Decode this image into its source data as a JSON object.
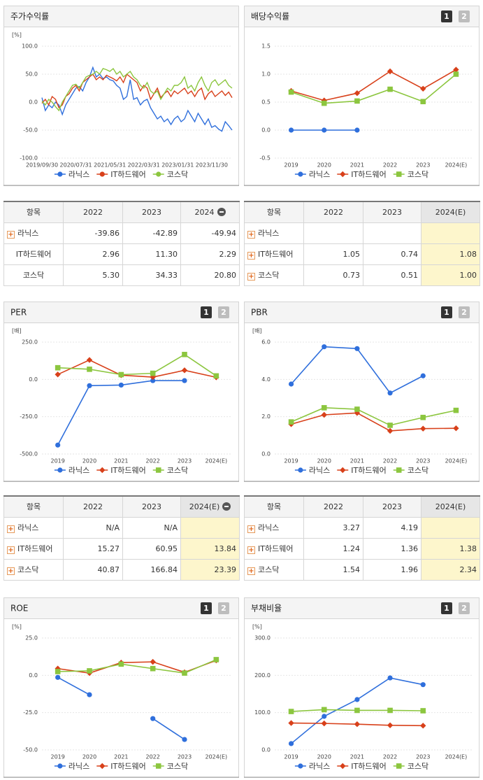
{
  "chart_data": [
    {
      "type": "line",
      "title": "주가수익률",
      "y_label": "[%]",
      "categories": [
        "2019/09/30",
        null,
        null,
        null,
        null,
        null,
        null,
        null,
        null,
        null,
        "2020/07/31",
        null,
        null,
        null,
        null,
        null,
        null,
        null,
        null,
        null,
        "2021/05/31",
        null,
        null,
        null,
        null,
        null,
        null,
        null,
        null,
        null,
        "2022/03/31",
        null,
        null,
        null,
        null,
        null,
        null,
        null,
        null,
        null,
        "2023/01/31",
        null,
        null,
        null,
        null,
        null,
        null,
        null,
        null,
        null,
        "2023/11/30",
        null,
        null,
        null,
        null,
        null,
        null
      ],
      "series": [
        {
          "name": "라닉스",
          "color": "#2f6fdc",
          "values": [
            8,
            -15,
            -5,
            -10,
            0,
            -5,
            -22,
            -5,
            5,
            15,
            25,
            28,
            20,
            35,
            45,
            62,
            45,
            50,
            42,
            45,
            40,
            38,
            30,
            25,
            5,
            10,
            40,
            5,
            8,
            -5,
            2,
            5,
            -10,
            -20,
            -30,
            -25,
            -35,
            -30,
            -40,
            -30,
            -25,
            -35,
            -30,
            -15,
            -25,
            -35,
            -20,
            -30,
            -40,
            -30,
            -45,
            -42,
            -48,
            -52,
            -35,
            -42,
            -50
          ]
        },
        {
          "name": "IT하드웨어",
          "color": "#d8401a",
          "values": [
            -2,
            5,
            -5,
            10,
            5,
            -10,
            -5,
            10,
            15,
            25,
            30,
            20,
            35,
            40,
            45,
            50,
            40,
            45,
            40,
            48,
            45,
            42,
            38,
            45,
            35,
            50,
            45,
            40,
            35,
            20,
            30,
            25,
            5,
            15,
            25,
            8,
            15,
            20,
            10,
            20,
            15,
            20,
            25,
            15,
            20,
            10,
            20,
            25,
            5,
            15,
            20,
            10,
            15,
            20,
            12,
            18,
            8
          ]
        },
        {
          "name": "코스닥",
          "color": "#8cc63f",
          "values": [
            2,
            -5,
            5,
            0,
            -8,
            -15,
            0,
            10,
            20,
            30,
            32,
            25,
            35,
            45,
            48,
            50,
            55,
            50,
            60,
            58,
            55,
            60,
            50,
            55,
            45,
            50,
            55,
            45,
            40,
            30,
            25,
            35,
            20,
            15,
            20,
            5,
            15,
            25,
            20,
            30,
            30,
            35,
            45,
            25,
            30,
            20,
            35,
            45,
            30,
            20,
            35,
            40,
            30,
            35,
            40,
            30,
            25
          ]
        }
      ],
      "ylim": [
        -100,
        100
      ],
      "yticks": [
        {
          "value": 100,
          "label": "100.0"
        },
        {
          "value": 50,
          "label": "50.0"
        },
        {
          "value": 0,
          "label": "0.0"
        },
        {
          "value": -50,
          "label": "-50.0"
        },
        {
          "value": -100,
          "label": "-100.0"
        }
      ]
    },
    {
      "type": "line",
      "title": "배당수익률",
      "tabs": [
        "1",
        "2"
      ],
      "categories": [
        "2019",
        "2020",
        "2021",
        "2022",
        "2023",
        "2024(E)"
      ],
      "series": [
        {
          "name": "라닉스",
          "color": "#2f6fdc",
          "marker": "circle",
          "values": [
            0,
            0,
            0,
            null,
            null,
            null
          ]
        },
        {
          "name": "IT하드웨어",
          "color": "#d8401a",
          "marker": "diamond",
          "values": [
            0.7,
            0.53,
            0.66,
            1.05,
            0.74,
            1.08
          ]
        },
        {
          "name": "코스닥",
          "color": "#8cc63f",
          "marker": "square",
          "values": [
            0.68,
            0.48,
            0.52,
            0.73,
            0.51,
            1.0
          ]
        }
      ],
      "ylim": [
        -0.5,
        1.5
      ],
      "yticks": [
        {
          "value": 1.5,
          "label": "1.5"
        },
        {
          "value": 1,
          "label": "1.0"
        },
        {
          "value": 0.5,
          "label": "0.5"
        },
        {
          "value": 0,
          "label": "0.0"
        },
        {
          "value": -0.5,
          "label": "-0.5"
        }
      ]
    },
    {
      "type": "line",
      "title": "PER",
      "tabs": [
        "1",
        "2"
      ],
      "y_label": "[배]",
      "categories": [
        "2019",
        "2020",
        "2021",
        "2022",
        "2023",
        "2024(E)"
      ],
      "series": [
        {
          "name": "라닉스",
          "color": "#2f6fdc",
          "marker": "circle",
          "values": [
            -440,
            -42,
            -38,
            -8,
            -8,
            null
          ]
        },
        {
          "name": "IT하드웨어",
          "color": "#d8401a",
          "marker": "diamond",
          "values": [
            33,
            130,
            28,
            15.27,
            60.95,
            13.84
          ]
        },
        {
          "name": "코스닥",
          "color": "#8cc63f",
          "marker": "square",
          "values": [
            78,
            68,
            32,
            40.87,
            166.84,
            23.39
          ]
        }
      ],
      "ylim": [
        -500,
        250
      ],
      "yticks": [
        {
          "value": 250,
          "label": "250.0"
        },
        {
          "value": 0,
          "label": "0.0"
        },
        {
          "value": -250,
          "label": "-250.0"
        },
        {
          "value": -500,
          "label": "-500.0"
        }
      ]
    },
    {
      "type": "line",
      "title": "PBR",
      "tabs": [
        "1",
        "2"
      ],
      "y_label": "[배]",
      "categories": [
        "2019",
        "2020",
        "2021",
        "2022",
        "2023",
        "2024(E)"
      ],
      "series": [
        {
          "name": "라닉스",
          "color": "#2f6fdc",
          "marker": "circle",
          "values": [
            3.75,
            5.75,
            5.65,
            3.27,
            4.19,
            null
          ]
        },
        {
          "name": "IT하드웨어",
          "color": "#d8401a",
          "marker": "diamond",
          "values": [
            1.6,
            2.1,
            2.2,
            1.24,
            1.36,
            1.38
          ]
        },
        {
          "name": "코스닥",
          "color": "#8cc63f",
          "marker": "square",
          "values": [
            1.72,
            2.48,
            2.4,
            1.54,
            1.96,
            2.34
          ]
        }
      ],
      "ylim": [
        0,
        6
      ],
      "yticks": [
        {
          "value": 6,
          "label": "6.0"
        },
        {
          "value": 4,
          "label": "4.0"
        },
        {
          "value": 2,
          "label": "2.0"
        },
        {
          "value": 0,
          "label": "0.0"
        }
      ]
    },
    {
      "type": "line",
      "title": "ROE",
      "tabs": [
        "1",
        "2"
      ],
      "y_label": "[%]",
      "categories": [
        "2019",
        "2020",
        "2021",
        "2022",
        "2023",
        "2024(E)"
      ],
      "series": [
        {
          "name": "라닉스",
          "color": "#2f6fdc",
          "marker": "circle",
          "values": [
            -1.4,
            -13,
            null,
            -29,
            -43,
            null
          ]
        },
        {
          "name": "IT하드웨어",
          "color": "#d8401a",
          "marker": "diamond",
          "values": [
            4.5,
            1.5,
            8.5,
            9,
            2,
            10
          ]
        },
        {
          "name": "코스닥",
          "color": "#8cc63f",
          "marker": "square",
          "values": [
            2.5,
            3,
            7.5,
            4.5,
            1.5,
            10.5
          ]
        }
      ],
      "ylim": [
        -50,
        25
      ],
      "yticks": [
        {
          "value": 25,
          "label": "25.0"
        },
        {
          "value": 0,
          "label": "0.0"
        },
        {
          "value": -25,
          "label": "-25.0"
        },
        {
          "value": -50,
          "label": "-50.0"
        }
      ]
    },
    {
      "type": "line",
      "title": "부채비율",
      "tabs": [
        "1",
        "2"
      ],
      "y_label": "[%]",
      "categories": [
        "2019",
        "2020",
        "2021",
        "2022",
        "2023",
        "2024(E)"
      ],
      "series": [
        {
          "name": "라닉스",
          "color": "#2f6fdc",
          "marker": "circle",
          "values": [
            17,
            90,
            135,
            193,
            175,
            null
          ]
        },
        {
          "name": "IT하드웨어",
          "color": "#d8401a",
          "marker": "diamond",
          "values": [
            72,
            71,
            69,
            66,
            65,
            null
          ]
        },
        {
          "name": "코스닥",
          "color": "#8cc63f",
          "marker": "square",
          "values": [
            103,
            108,
            106,
            106,
            105,
            null
          ]
        }
      ],
      "ylim": [
        0,
        300
      ],
      "yticks": [
        {
          "value": 300,
          "label": "300.0"
        },
        {
          "value": 200,
          "label": "200.0"
        },
        {
          "value": 100,
          "label": "100.0"
        },
        {
          "value": 0,
          "label": "0.0"
        }
      ]
    }
  ],
  "tables": [
    {
      "columns": [
        "항목",
        "2022",
        "2023",
        "2024"
      ],
      "rows": [
        [
          "라닉스",
          "-39.86",
          "-42.89",
          "-49.94"
        ],
        [
          "IT하드웨어",
          "2.96",
          "11.30",
          "2.29"
        ],
        [
          "코스닥",
          "5.30",
          "34.33",
          "20.80"
        ]
      ]
    },
    {
      "columns": [
        "항목",
        "2022",
        "2023",
        "2024(E)"
      ],
      "rows": [
        [
          "라닉스",
          null,
          null,
          null
        ],
        [
          "IT하드웨어",
          "1.05",
          "0.74",
          "1.08"
        ],
        [
          "코스닥",
          "0.73",
          "0.51",
          "1.00"
        ]
      ]
    },
    {
      "columns": [
        "항목",
        "2022",
        "2023",
        "2024(E)"
      ],
      "rows": [
        [
          "라닉스",
          "N/A",
          "N/A",
          null
        ],
        [
          "IT하드웨어",
          "15.27",
          "60.95",
          "13.84"
        ],
        [
          "코스닥",
          "40.87",
          "166.84",
          "23.39"
        ]
      ]
    },
    {
      "columns": [
        "항목",
        "2022",
        "2023",
        "2024(E)"
      ],
      "rows": [
        [
          "라닉스",
          "3.27",
          "4.19",
          null
        ],
        [
          "IT하드웨어",
          "1.24",
          "1.36",
          "1.38"
        ],
        [
          "코스닥",
          "1.54",
          "1.96",
          "2.34"
        ]
      ]
    }
  ]
}
